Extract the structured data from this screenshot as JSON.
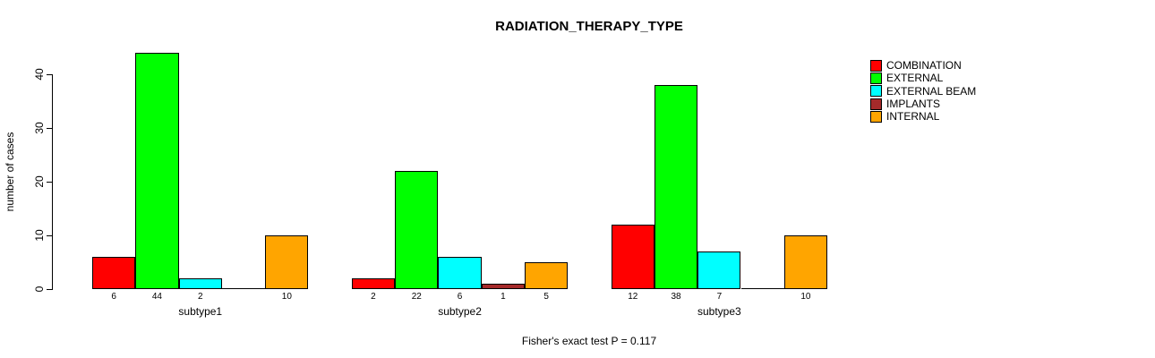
{
  "chart_data": {
    "type": "bar",
    "title": "RADIATION_THERAPY_TYPE",
    "ylabel": "number of cases",
    "xlabel": "",
    "footnote": "Fisher's exact test P = 0.117",
    "ylim": [
      0,
      44
    ],
    "yticks": [
      0,
      10,
      20,
      30,
      40
    ],
    "grid": false,
    "legend_position": "top-right",
    "bar_value_labels_shown": true,
    "categories": [
      "subtype1",
      "subtype2",
      "subtype3"
    ],
    "series": [
      {
        "name": "COMBINATION",
        "color": "#FF0000",
        "values": [
          6,
          2,
          12
        ]
      },
      {
        "name": "EXTERNAL",
        "color": "#00FF00",
        "values": [
          44,
          22,
          38
        ]
      },
      {
        "name": "EXTERNAL BEAM",
        "color": "#00FFFF",
        "values": [
          2,
          6,
          7
        ]
      },
      {
        "name": "IMPLANTS",
        "color": "#A52A2A",
        "values": [
          0,
          1,
          0
        ]
      },
      {
        "name": "INTERNAL",
        "color": "#FFA500",
        "values": [
          10,
          5,
          10
        ]
      }
    ]
  }
}
